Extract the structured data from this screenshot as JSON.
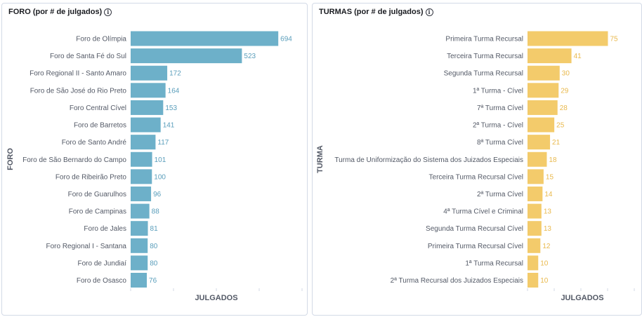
{
  "panels": {
    "foro": {
      "title": "FORO (por # de julgados)",
      "info_icon": "info-icon"
    },
    "turmas": {
      "title": "TURMAS (por # de julgados)",
      "info_icon": "info-icon"
    }
  },
  "chart_data": [
    {
      "type": "bar",
      "orientation": "horizontal",
      "title": "FORO (por # de julgados)",
      "ylabel": "FORO",
      "xlabel": "JULGADOS",
      "color": "#6db0c9",
      "label_color": "#5a9ebb",
      "categories": [
        "Foro de Olímpia",
        "Foro de Santa Fé do Sul",
        "Foro Regional II - Santo Amaro",
        "Foro de São José do Rio Preto",
        "Foro Central Cível",
        "Foro de Barretos",
        "Foro de Santo André",
        "Foro de São Bernardo do Campo",
        "Foro de Ribeirão Preto",
        "Foro de Guarulhos",
        "Foro de Campinas",
        "Foro de Jales",
        "Foro Regional I - Santana",
        "Foro de Jundiaí",
        "Foro de Osasco"
      ],
      "values": [
        694,
        523,
        172,
        164,
        153,
        141,
        117,
        101,
        100,
        96,
        88,
        81,
        80,
        80,
        76
      ],
      "xlim": [
        0,
        700
      ]
    },
    {
      "type": "bar",
      "orientation": "horizontal",
      "title": "TURMAS (por # de julgados)",
      "ylabel": "TURMA",
      "xlabel": "JULGADOS",
      "color": "#f3cb6b",
      "label_color": "#e9b94d",
      "categories": [
        "Primeira Turma Recursal",
        "Terceira Turma Recursal",
        "Segunda Turma Recursal",
        "1ª Turma - Cível",
        "7ª Turma Cível",
        "2ª Turma - Cível",
        "8ª Turma Cível",
        "Turma de Uniformização do Sistema dos Juizados Especiais",
        "Terceira Turma Recursal Cível",
        "2ª Turma Cível",
        "4ª Turma Cível e Criminal",
        "Segunda Turma Recursal Cível",
        "Primeira Turma Recursal Cível",
        "1ª Turma Recursal",
        "2ª Turma Recursal dos Juizados Especiais"
      ],
      "values": [
        75,
        41,
        30,
        29,
        28,
        25,
        21,
        18,
        15,
        14,
        13,
        13,
        12,
        10,
        10
      ],
      "xlim": [
        0,
        76
      ]
    }
  ]
}
